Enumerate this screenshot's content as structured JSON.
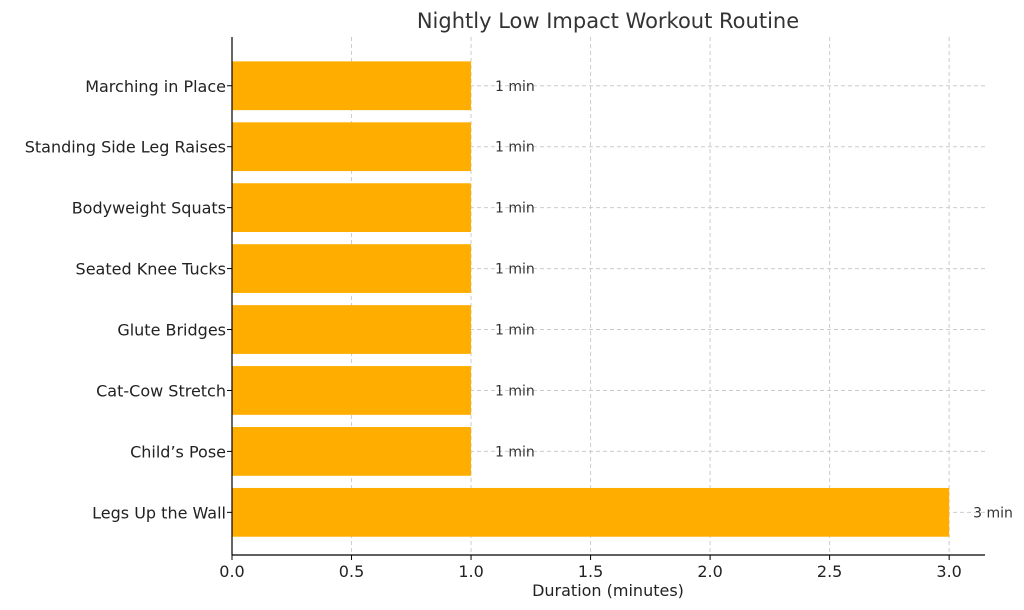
{
  "chart_data": {
    "type": "bar",
    "orientation": "horizontal",
    "title": "Nightly Low Impact Workout Routine",
    "xlabel": "Duration (minutes)",
    "ylabel": "",
    "categories": [
      "Marching in Place",
      "Standing Side Leg Raises",
      "Bodyweight Squats",
      "Seated Knee Tucks",
      "Glute Bridges",
      "Cat-Cow Stretch",
      "Child’s Pose",
      "Legs Up the Wall"
    ],
    "values": [
      1,
      1,
      1,
      1,
      1,
      1,
      1,
      3
    ],
    "data_labels": [
      "1 min",
      "1 min",
      "1 min",
      "1 min",
      "1 min",
      "1 min",
      "1 min",
      "3 min"
    ],
    "xlim": [
      0,
      3.15
    ],
    "xticks": [
      0.0,
      0.5,
      1.0,
      1.5,
      2.0,
      2.5,
      3.0
    ],
    "xtick_labels": [
      "0.0",
      "0.5",
      "1.0",
      "1.5",
      "2.0",
      "2.5",
      "3.0"
    ],
    "grid": true,
    "bar_color": "#ffae00"
  }
}
